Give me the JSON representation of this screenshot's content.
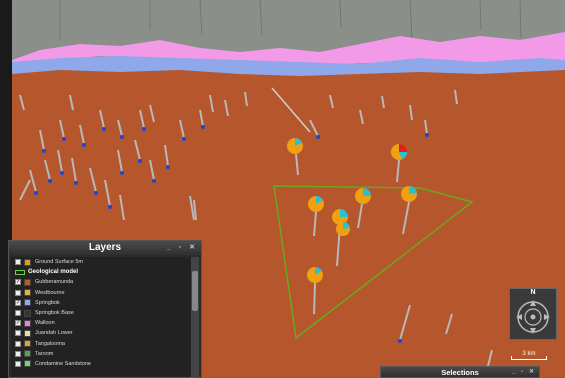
{
  "layers_panel": {
    "title": "Layers",
    "window_buttons": "_ ▫ ✕",
    "items": [
      {
        "label": "Ground Surface 5m",
        "checked": false,
        "color": "#d9a020",
        "group": false
      },
      {
        "label": "Geological model",
        "checked": false,
        "color": "",
        "group": true
      },
      {
        "label": "Gubberamunda",
        "checked": true,
        "color": "#b85c2b",
        "group": false
      },
      {
        "label": "Westbourne",
        "checked": false,
        "color": "#e8b040",
        "group": false
      },
      {
        "label": "Springbok",
        "checked": true,
        "color": "#8fa8e8",
        "group": false
      },
      {
        "label": "Springbok Base",
        "checked": false,
        "color": "#333333",
        "group": false
      },
      {
        "label": "Walloon",
        "checked": true,
        "color": "#f07ae0",
        "group": false
      },
      {
        "label": "Juandah Lower",
        "checked": false,
        "color": "#f5d8a0",
        "group": false
      },
      {
        "label": "Tangalooma",
        "checked": false,
        "color": "#e8a020",
        "group": false
      },
      {
        "label": "Taroom",
        "checked": false,
        "color": "#4aa84a",
        "group": false
      },
      {
        "label": "Condamine Sandstone",
        "checked": false,
        "color": "#7ad07a",
        "group": false
      }
    ]
  },
  "compass": {
    "north_label": "N"
  },
  "scale": {
    "label": "3 km"
  },
  "selections_panel": {
    "title": "Selections",
    "window_buttons": "_ ▫ ✕"
  },
  "scene": {
    "ground_color": "#b5562c",
    "sky_color": "#8a8f8a",
    "walloon_color": "#f29ae8",
    "springbok_color": "#8fa8ea",
    "polygon_color": "#6aa820",
    "pie_colors": [
      "#f0a010",
      "#2ac0d0",
      "#e02020"
    ]
  }
}
